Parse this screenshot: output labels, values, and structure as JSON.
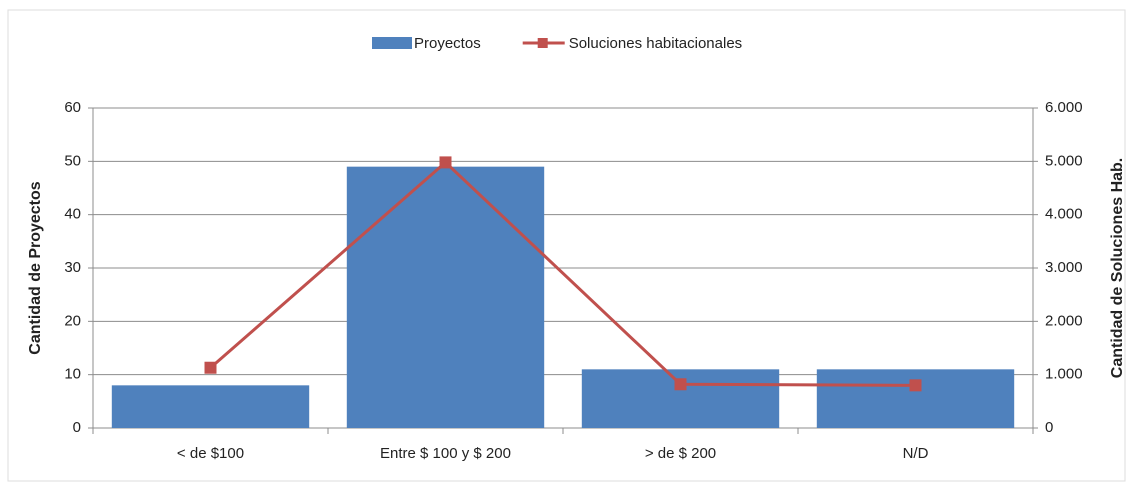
{
  "chart_data": {
    "type": "bar",
    "categories": [
      "< de $100",
      "Entre $ 100 y $ 200",
      "> de $ 200",
      "N/D"
    ],
    "series": [
      {
        "name": "Proyectos",
        "type": "bar",
        "color": "#4f81bd",
        "values": [
          8,
          49,
          11,
          11
        ]
      },
      {
        "name": "Soluciones habitacionales",
        "type": "line",
        "axis": "y2",
        "color": "#c0504d",
        "values": [
          1130,
          4980,
          820,
          800
        ]
      }
    ],
    "ylabel": "Cantidad de Proyectos",
    "y2label": "Cantidad de Soluciones Hab.",
    "ylim": [
      0,
      60
    ],
    "yticks": [
      0,
      10,
      20,
      30,
      40,
      50,
      60
    ],
    "y2lim": [
      0,
      6000
    ],
    "y2ticks": [
      0,
      {
        "value": 1000,
        "label": "1.000"
      },
      {
        "value": 2000,
        "label": "2.000"
      },
      {
        "value": 3000,
        "label": "3.000"
      },
      {
        "value": 4000,
        "label": "4.000"
      },
      {
        "value": 5000,
        "label": "5.000"
      },
      {
        "value": 6000,
        "label": "6.000"
      }
    ],
    "grid": true,
    "legend": "top"
  }
}
